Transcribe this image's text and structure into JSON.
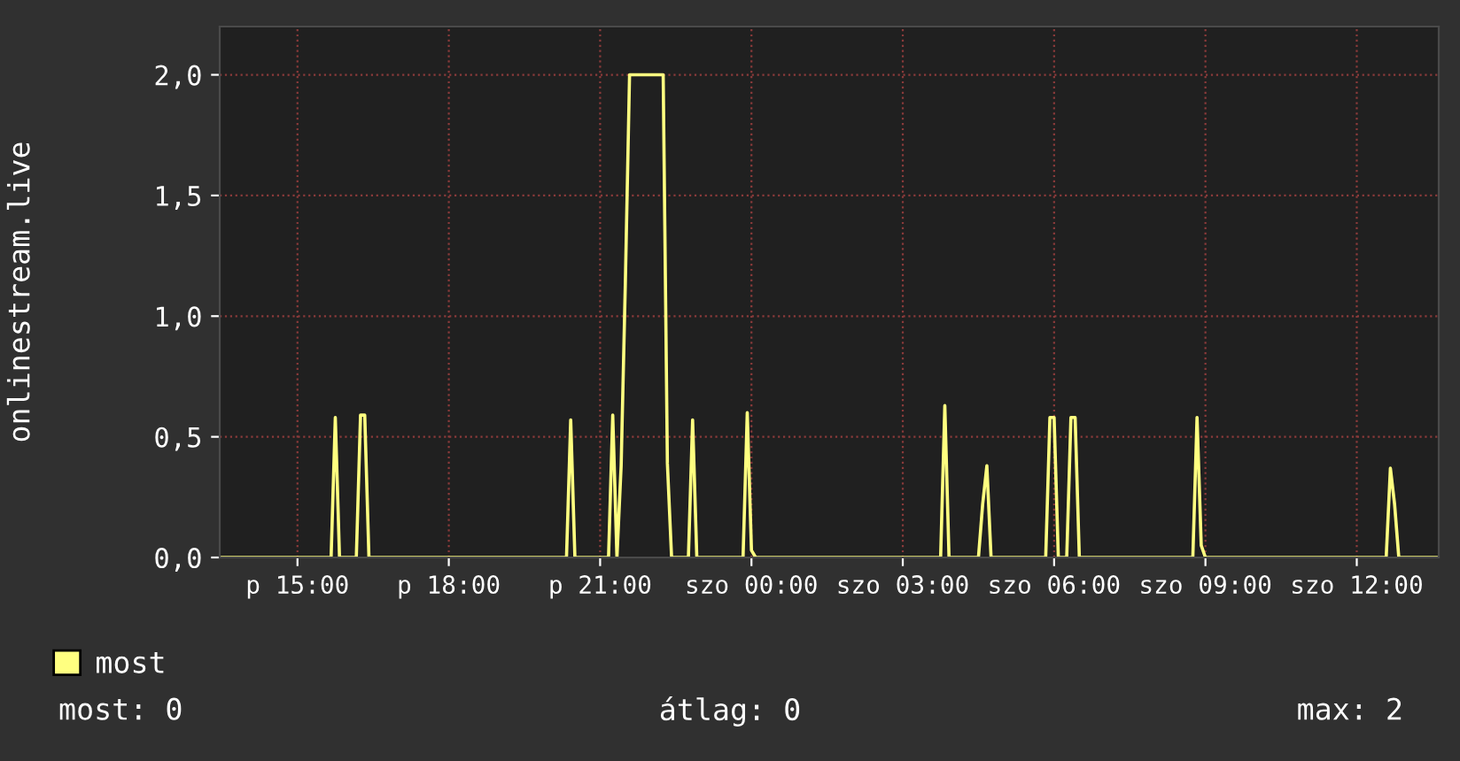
{
  "chart_data": {
    "type": "line",
    "ylabel": "onlinestream.live",
    "categories": [
      null,
      null,
      null,
      null,
      null,
      null,
      null,
      null,
      null,
      null,
      null,
      null,
      null,
      null,
      null,
      null,
      null,
      null,
      "p 15:00",
      null,
      null,
      null,
      null,
      null,
      null,
      null,
      null,
      null,
      null,
      null,
      null,
      null,
      null,
      null,
      null,
      null,
      null,
      null,
      null,
      null,
      null,
      null,
      null,
      null,
      null,
      null,
      null,
      null,
      null,
      null,
      null,
      null,
      null,
      null,
      "p 18:00",
      null,
      null,
      null,
      null,
      null,
      null,
      null,
      null,
      null,
      null,
      null,
      null,
      null,
      null,
      null,
      null,
      null,
      null,
      null,
      null,
      null,
      null,
      null,
      null,
      null,
      null,
      null,
      null,
      null,
      null,
      null,
      null,
      null,
      null,
      null,
      "p 21:00",
      null,
      null,
      null,
      null,
      null,
      null,
      null,
      null,
      null,
      null,
      null,
      null,
      null,
      null,
      null,
      null,
      null,
      null,
      null,
      null,
      null,
      null,
      null,
      null,
      null,
      null,
      null,
      null,
      null,
      null,
      null,
      null,
      null,
      null,
      null,
      "szo 00:00",
      null,
      null,
      null,
      null,
      null,
      null,
      null,
      null,
      null,
      null,
      null,
      null,
      null,
      null,
      null,
      null,
      null,
      null,
      null,
      null,
      null,
      null,
      null,
      null,
      null,
      null,
      null,
      null,
      null,
      null,
      null,
      null,
      null,
      null,
      null,
      "szo 03:00",
      null,
      null,
      null,
      null,
      null,
      null,
      null,
      null,
      null,
      null,
      null,
      null,
      null,
      null,
      null,
      null,
      null,
      null,
      null,
      null,
      null,
      null,
      null,
      null,
      null,
      null,
      null,
      null,
      null,
      null,
      null,
      null,
      null,
      null,
      null,
      "szo 06:00",
      null,
      null,
      null,
      null,
      null,
      null,
      null,
      null,
      null,
      null,
      null,
      null,
      null,
      null,
      null,
      null,
      null,
      null,
      null,
      null,
      null,
      null,
      null,
      null,
      null,
      null,
      null,
      null,
      null,
      null,
      null,
      null,
      null,
      null,
      null,
      "szo 09:00",
      null,
      null,
      null,
      null,
      null,
      null,
      null,
      null,
      null,
      null,
      null,
      null,
      null,
      null,
      null,
      null,
      null,
      null,
      null,
      null,
      null,
      null,
      null,
      null,
      null,
      null,
      null,
      null,
      null,
      null,
      null,
      null,
      null,
      null,
      null,
      "szo 12:00",
      null,
      null,
      null,
      null,
      null,
      null,
      null,
      null,
      null,
      null,
      null,
      null,
      null,
      null,
      null,
      null,
      null,
      null,
      null
    ],
    "series": [
      {
        "name": "most",
        "color": "#ffff80",
        "values": [
          0,
          0,
          0,
          0,
          0,
          0,
          0,
          0,
          0,
          0,
          0,
          0,
          0,
          0,
          0,
          0,
          0,
          0,
          0,
          0,
          0,
          0,
          0,
          0,
          0,
          0,
          0,
          0.58,
          0,
          0,
          0,
          0,
          0,
          0.59,
          0.59,
          0,
          0,
          0,
          0,
          0,
          0,
          0,
          0,
          0,
          0,
          0,
          0,
          0,
          0,
          0,
          0,
          0,
          0,
          0,
          0,
          0,
          0,
          0,
          0,
          0,
          0,
          0,
          0,
          0,
          0,
          0,
          0,
          0,
          0,
          0,
          0,
          0,
          0,
          0,
          0,
          0,
          0,
          0,
          0,
          0,
          0,
          0,
          0,
          0.57,
          0,
          0,
          0,
          0,
          0,
          0,
          0,
          0,
          0,
          0.59,
          0,
          0.38,
          1.14,
          2.0,
          2.0,
          2.0,
          2.0,
          2.0,
          2.0,
          2.0,
          2.0,
          2.0,
          0.39,
          0,
          0,
          0,
          0,
          0,
          0.57,
          0,
          0,
          0,
          0,
          0,
          0,
          0,
          0,
          0,
          0,
          0,
          0,
          0.6,
          0.03,
          0,
          0,
          0,
          0,
          0,
          0,
          0,
          0,
          0,
          0,
          0,
          0,
          0,
          0,
          0,
          0,
          0,
          0,
          0,
          0,
          0,
          0,
          0,
          0,
          0,
          0,
          0,
          0,
          0,
          0,
          0,
          0,
          0,
          0,
          0,
          0,
          0,
          0,
          0,
          0,
          0,
          0,
          0,
          0,
          0,
          0.63,
          0,
          0,
          0,
          0,
          0,
          0,
          0,
          0,
          0.22,
          0.38,
          0,
          0,
          0,
          0,
          0,
          0,
          0,
          0,
          0,
          0,
          0,
          0,
          0,
          0,
          0.58,
          0.58,
          0,
          0,
          0,
          0.58,
          0.58,
          0,
          0,
          0,
          0,
          0,
          0,
          0,
          0,
          0,
          0,
          0,
          0,
          0,
          0,
          0,
          0,
          0,
          0,
          0,
          0,
          0,
          0,
          0,
          0,
          0,
          0,
          0,
          0,
          0.58,
          0.05,
          0,
          0,
          0,
          0,
          0,
          0,
          0,
          0,
          0,
          0,
          0,
          0,
          0,
          0,
          0,
          0,
          0,
          0,
          0,
          0,
          0,
          0,
          0,
          0,
          0,
          0,
          0,
          0,
          0,
          0,
          0,
          0,
          0,
          0,
          0,
          0,
          0,
          0,
          0,
          0,
          0,
          0,
          0,
          0,
          0.37,
          0.22,
          0,
          0,
          0,
          0,
          0,
          0,
          0,
          0,
          0,
          0
        ]
      }
    ],
    "ylim": [
      0,
      2.2
    ],
    "yticks": [
      {
        "value": 0,
        "label": "0,0"
      },
      {
        "value": 0.5,
        "label": "0,5"
      },
      {
        "value": 1.0,
        "label": "1,0"
      },
      {
        "value": 1.5,
        "label": "1,5"
      },
      {
        "value": 2.0,
        "label": "2,0"
      }
    ],
    "grid": true,
    "legend": "bottom left",
    "line_style": "solid",
    "marker": "none",
    "annotations": [
      "most: 0",
      "átlag: 0",
      "max: 2"
    ]
  }
}
